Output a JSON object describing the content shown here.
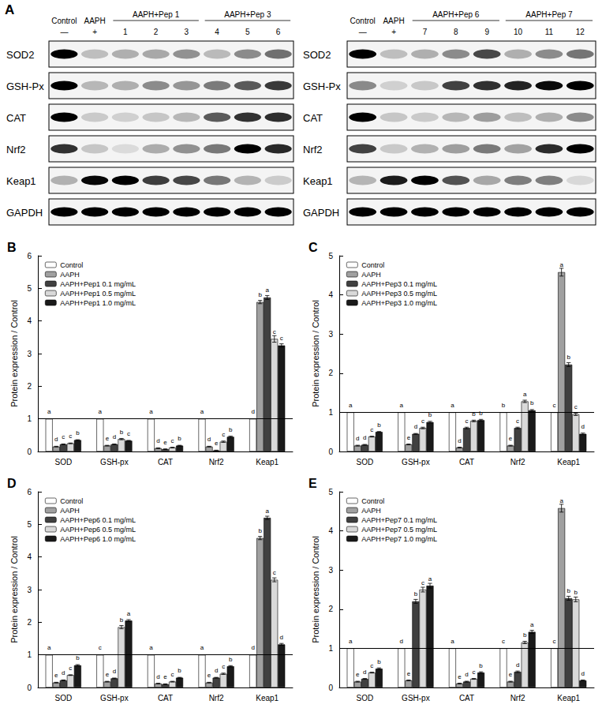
{
  "blot": {
    "label": "A",
    "rows": [
      "SOD2",
      "GSH-Px",
      "CAT",
      "Nrf2",
      "Keap1",
      "GAPDH"
    ],
    "panels": [
      {
        "control": "Control",
        "aaph": "AAPH",
        "groups": [
          "AAPH+Pep 1",
          "AAPH+Pep 3"
        ],
        "lanes": [
          "—",
          "+",
          "1",
          "2",
          "3",
          "4",
          "5",
          "6"
        ]
      },
      {
        "control": "Control",
        "aaph": "AAPH",
        "groups": [
          "AAPH+Pep 6",
          "AAPH+Pep 7"
        ],
        "lanes": [
          "—",
          "+",
          "7",
          "8",
          "9",
          "10",
          "11",
          "12"
        ]
      }
    ]
  },
  "chart_data": [
    {
      "type": "bar",
      "title": "B",
      "y_label": "Protein expression / Control",
      "categories": [
        "SOD",
        "GSH-px",
        "CAT",
        "Nrf2",
        "Keap1"
      ],
      "ylim": [
        0,
        6
      ],
      "yticks": [
        0,
        1,
        2,
        3,
        4,
        5,
        6
      ],
      "grid": false,
      "legend": "upper left",
      "reference_line": 1,
      "series": [
        {
          "name": "Control",
          "color": "#ffffff",
          "values": [
            1,
            1,
            1,
            1,
            1
          ],
          "errors": [
            0,
            0,
            0,
            0,
            0
          ],
          "letters": [
            "a",
            "a",
            "a",
            "a",
            "d"
          ]
        },
        {
          "name": "AAPH",
          "color": "#a0a0a0",
          "values": [
            0.15,
            0.18,
            0.1,
            0.15,
            4.58
          ],
          "errors": [
            0.01,
            0.01,
            0.01,
            0.01,
            0.05
          ],
          "letters": [
            "d",
            "e",
            "d",
            "d",
            "b"
          ]
        },
        {
          "name": "AAPH+Pep1 0.1 mg/mL",
          "color": "#404040",
          "values": [
            0.22,
            0.22,
            0.07,
            0.03,
            4.72
          ],
          "errors": [
            0.01,
            0.01,
            0.01,
            0.01,
            0.06
          ],
          "letters": [
            "c",
            "d",
            "e",
            "e",
            "a"
          ]
        },
        {
          "name": "AAPH+Pep1 0.5 mg/mL",
          "color": "#d9d9d9",
          "values": [
            0.25,
            0.38,
            0.12,
            0.3,
            3.45
          ],
          "errors": [
            0.01,
            0.02,
            0.01,
            0.02,
            0.1
          ],
          "letters": [
            "c",
            "b",
            "c",
            "c",
            "c"
          ]
        },
        {
          "name": "AAPH+Pep1 1.0 mg/mL",
          "color": "#1a1a1a",
          "values": [
            0.35,
            0.33,
            0.18,
            0.45,
            3.25
          ],
          "errors": [
            0.01,
            0.01,
            0.01,
            0.02,
            0.05
          ],
          "letters": [
            "b",
            "c",
            "b",
            "b",
            "c"
          ]
        }
      ]
    },
    {
      "type": "bar",
      "title": "C",
      "y_label": "Protein expression / Control",
      "categories": [
        "SOD",
        "GSH-px",
        "CAT",
        "Nrf2",
        "Keap1"
      ],
      "ylim": [
        0,
        5
      ],
      "yticks": [
        0,
        1,
        2,
        3,
        4,
        5
      ],
      "grid": false,
      "legend": "upper left",
      "reference_line": 1,
      "series": [
        {
          "name": "Control",
          "color": "#ffffff",
          "values": [
            1,
            1,
            1,
            1,
            1
          ],
          "errors": [
            0,
            0,
            0,
            0,
            0
          ],
          "letters": [
            "a",
            "a",
            "a",
            "b",
            "c"
          ]
        },
        {
          "name": "AAPH",
          "color": "#a0a0a0",
          "values": [
            0.15,
            0.18,
            0.1,
            0.15,
            4.58
          ],
          "errors": [
            0.01,
            0.01,
            0.01,
            0.01,
            0.1
          ],
          "letters": [
            "d",
            "e",
            "d",
            "e",
            "a"
          ]
        },
        {
          "name": "AAPH+Pep3 0.1 mg/mL",
          "color": "#404040",
          "values": [
            0.17,
            0.45,
            0.6,
            0.6,
            2.22
          ],
          "errors": [
            0.01,
            0.01,
            0.02,
            0.02,
            0.05
          ],
          "letters": [
            "d",
            "d",
            "c",
            "c",
            "b"
          ]
        },
        {
          "name": "AAPH+Pep3 0.5 mg/mL",
          "color": "#d9d9d9",
          "values": [
            0.38,
            0.6,
            0.78,
            1.28,
            0.95
          ],
          "errors": [
            0.01,
            0.02,
            0.02,
            0.03,
            0.03
          ],
          "letters": [
            "c",
            "c",
            "b",
            "a",
            "c"
          ]
        },
        {
          "name": "AAPH+Pep3 1.0 mg/mL",
          "color": "#1a1a1a",
          "values": [
            0.5,
            0.75,
            0.8,
            1.05,
            0.45
          ],
          "errors": [
            0.01,
            0.02,
            0.02,
            0.02,
            0.02
          ],
          "letters": [
            "b",
            "b",
            "b",
            "b",
            "d"
          ]
        }
      ]
    },
    {
      "type": "bar",
      "title": "D",
      "y_label": "Protein expression / Control",
      "categories": [
        "SOD",
        "GSH-px",
        "CAT",
        "Nrf2",
        "Keap1"
      ],
      "ylim": [
        0,
        6
      ],
      "yticks": [
        0,
        1,
        2,
        3,
        4,
        5,
        6
      ],
      "grid": false,
      "legend": "upper left",
      "reference_line": 1,
      "series": [
        {
          "name": "Control",
          "color": "#ffffff",
          "values": [
            1,
            1,
            1,
            1,
            1
          ],
          "errors": [
            0,
            0,
            0,
            0,
            0
          ],
          "letters": [
            "a",
            "c",
            "a",
            "a",
            "d"
          ]
        },
        {
          "name": "AAPH",
          "color": "#a0a0a0",
          "values": [
            0.15,
            0.18,
            0.12,
            0.15,
            4.58
          ],
          "errors": [
            0.01,
            0.01,
            0.01,
            0.01,
            0.05
          ],
          "letters": [
            "e",
            "e",
            "d",
            "e",
            "b"
          ]
        },
        {
          "name": "AAPH+Pep6 0.1 mg/mL",
          "color": "#404040",
          "values": [
            0.22,
            0.28,
            0.1,
            0.3,
            5.2
          ],
          "errors": [
            0.01,
            0.01,
            0.01,
            0.01,
            0.05
          ],
          "letters": [
            "d",
            "d",
            "e",
            "d",
            "a"
          ]
        },
        {
          "name": "AAPH+Pep6 0.5 mg/mL",
          "color": "#d9d9d9",
          "values": [
            0.38,
            1.85,
            0.18,
            0.42,
            3.3
          ],
          "errors": [
            0.01,
            0.05,
            0.01,
            0.02,
            0.06
          ],
          "letters": [
            "c",
            "b",
            "c",
            "c",
            "c"
          ]
        },
        {
          "name": "AAPH+Pep6 1.0 mg/mL",
          "color": "#1a1a1a",
          "values": [
            0.68,
            2.05,
            0.3,
            0.65,
            1.32
          ],
          "errors": [
            0.02,
            0.03,
            0.01,
            0.02,
            0.03
          ],
          "letters": [
            "b",
            "a",
            "b",
            "b",
            "d"
          ]
        }
      ]
    },
    {
      "type": "bar",
      "title": "E",
      "y_label": "Protein expression / Control",
      "categories": [
        "SOD",
        "GSH-px",
        "CAT",
        "Nrf2",
        "Keap1"
      ],
      "ylim": [
        0,
        5
      ],
      "yticks": [
        0,
        1,
        2,
        3,
        4,
        5
      ],
      "grid": false,
      "legend": "upper left",
      "reference_line": 1,
      "series": [
        {
          "name": "Control",
          "color": "#ffffff",
          "values": [
            1,
            1,
            1,
            1,
            1
          ],
          "errors": [
            0,
            0,
            0,
            0,
            0
          ],
          "letters": [
            "a",
            "d",
            "a",
            "c",
            "c"
          ]
        },
        {
          "name": "AAPH",
          "color": "#a0a0a0",
          "values": [
            0.15,
            0.18,
            0.1,
            0.15,
            4.58
          ],
          "errors": [
            0.01,
            0.01,
            0.01,
            0.01,
            0.1
          ],
          "letters": [
            "e",
            "e",
            "e",
            "e",
            "a"
          ]
        },
        {
          "name": "AAPH+Pep7 0.1 mg/mL",
          "color": "#404040",
          "values": [
            0.22,
            2.2,
            0.15,
            0.4,
            2.28
          ],
          "errors": [
            0.01,
            0.05,
            0.01,
            0.02,
            0.05
          ],
          "letters": [
            "d",
            "b",
            "d",
            "d",
            "b"
          ]
        },
        {
          "name": "AAPH+Pep7 0.5 mg/mL",
          "color": "#d9d9d9",
          "values": [
            0.38,
            2.5,
            0.22,
            1.15,
            2.25
          ],
          "errors": [
            0.01,
            0.06,
            0.01,
            0.03,
            0.06
          ],
          "letters": [
            "c",
            "c",
            "c",
            "b",
            "b"
          ]
        },
        {
          "name": "AAPH+Pep7 1.0 mg/mL",
          "color": "#1a1a1a",
          "values": [
            0.48,
            2.6,
            0.38,
            1.42,
            0.18
          ],
          "errors": [
            0.02,
            0.06,
            0.02,
            0.04,
            0.01
          ],
          "letters": [
            "b",
            "a",
            "b",
            "a",
            "d"
          ]
        }
      ]
    }
  ]
}
